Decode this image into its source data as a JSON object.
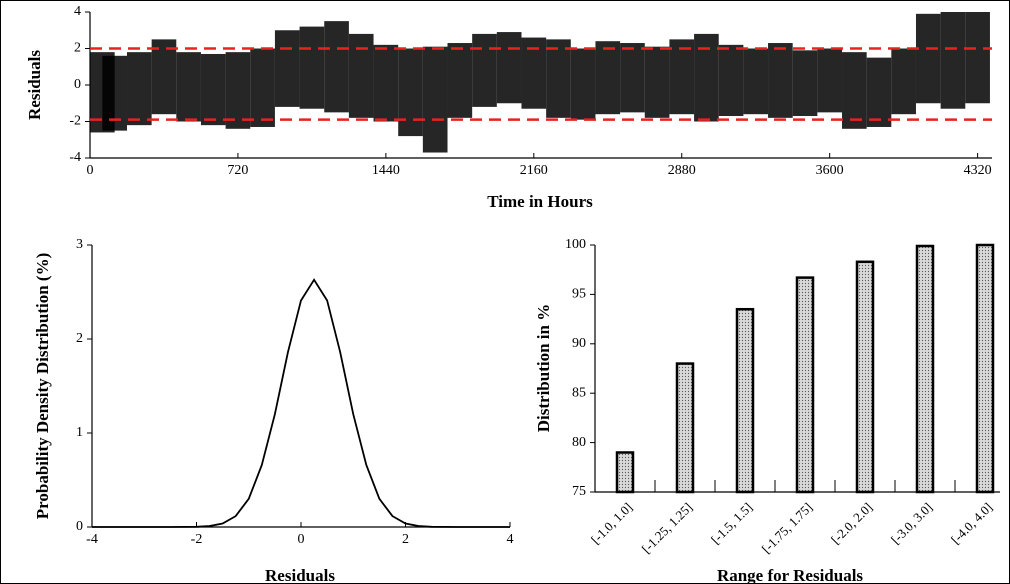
{
  "chart_data": [
    {
      "type": "band",
      "ylabel": "Residuals",
      "xlabel": "Time in Hours",
      "x": [
        0,
        120,
        240,
        360,
        480,
        600,
        720,
        840,
        960,
        1080,
        1200,
        1320,
        1440,
        1560,
        1680,
        1800,
        1920,
        2040,
        2160,
        2280,
        2400,
        2520,
        2640,
        2760,
        2880,
        3000,
        3120,
        3240,
        3360,
        3480,
        3600,
        3720,
        3840,
        3960,
        4080,
        4200,
        4320
      ],
      "low": [
        -2.6,
        -2.5,
        -2.2,
        -1.6,
        -2.0,
        -2.2,
        -2.4,
        -2.3,
        -1.2,
        -1.3,
        -1.5,
        -1.8,
        -2.0,
        -2.8,
        -3.7,
        -1.8,
        -1.2,
        -1.0,
        -1.3,
        -1.8,
        -1.9,
        -1.6,
        -1.5,
        -1.8,
        -1.6,
        -2.0,
        -1.7,
        -1.6,
        -1.8,
        -1.7,
        -1.5,
        -2.4,
        -2.3,
        -1.6,
        -1.0,
        -1.3,
        -1.0
      ],
      "high": [
        1.8,
        1.6,
        1.8,
        2.5,
        1.8,
        1.7,
        1.8,
        2.0,
        3.0,
        3.2,
        3.5,
        2.8,
        2.2,
        2.0,
        2.1,
        2.3,
        2.8,
        2.9,
        2.6,
        2.5,
        2.0,
        2.4,
        2.3,
        2.1,
        2.5,
        2.8,
        2.2,
        2.0,
        2.3,
        1.9,
        2.0,
        1.8,
        1.5,
        2.0,
        3.9,
        4.0,
        4.0
      ],
      "color": "#000000",
      "hlines": [
        2,
        -1.9
      ],
      "hline_color": "#e8231f",
      "xlim": [
        0,
        4390
      ],
      "xticks": [
        0,
        720,
        1440,
        2160,
        2880,
        3600,
        4320
      ],
      "ylim": [
        -4,
        4
      ],
      "yticks": [
        -4,
        -2,
        0,
        2,
        4
      ]
    },
    {
      "type": "line",
      "xlabel": "Residuals",
      "ylabel": "Probability Density Distribution (%)",
      "x": [
        -4,
        -3,
        -2.5,
        -2,
        -1.75,
        -1.5,
        -1.25,
        -1,
        -0.75,
        -0.5,
        -0.25,
        0,
        0.25,
        0.5,
        0.75,
        1,
        1.25,
        1.5,
        1.75,
        2,
        2.25,
        2.5,
        3,
        4
      ],
      "values": [
        0,
        0,
        0,
        0.002,
        0.01,
        0.037,
        0.116,
        0.3,
        0.66,
        1.2,
        1.86,
        2.41,
        2.63,
        2.41,
        1.86,
        1.2,
        0.66,
        0.3,
        0.116,
        0.037,
        0.01,
        0.002,
        0,
        0
      ],
      "color": "#000000",
      "xlim": [
        -4,
        4
      ],
      "xticks": [
        -4,
        -2,
        0,
        2,
        4
      ],
      "ylim": [
        0,
        3
      ],
      "yticks": [
        0,
        1,
        2,
        3
      ]
    },
    {
      "type": "bar",
      "xlabel": "Range for Residuals",
      "ylabel": "Distribution in %",
      "categories": [
        "[-1.0, 1.0]",
        "[-1.25, 1.25]",
        "[-1.5, 1.5]",
        "[-1.75, 1.75]",
        "[-2.0, 2.0]",
        "[-3.0, 3.0]",
        "[-4.0, 4.0]"
      ],
      "values": [
        79,
        88,
        93.5,
        96.7,
        98.3,
        99.9,
        100
      ],
      "color": "#d8d8d8",
      "ylim": [
        75,
        100
      ],
      "yticks": [
        75,
        80,
        85,
        90,
        95,
        100
      ]
    }
  ]
}
